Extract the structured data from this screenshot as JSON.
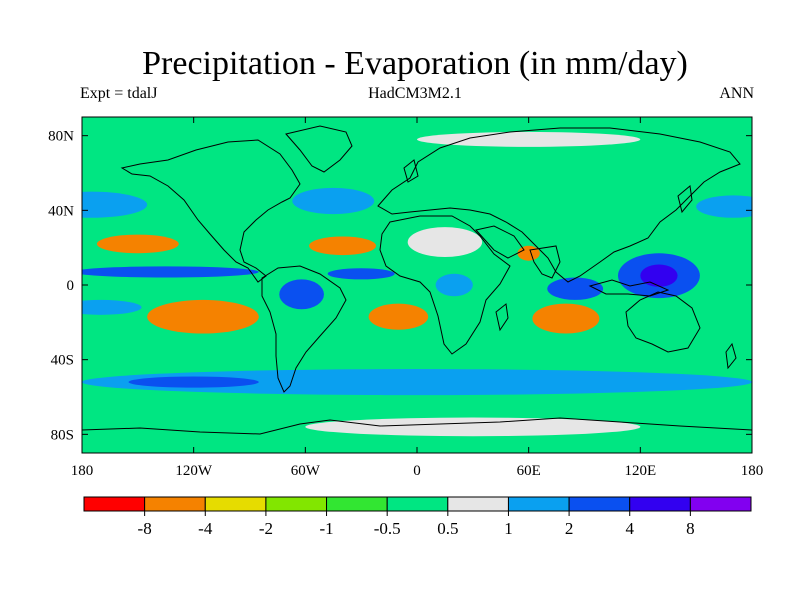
{
  "header": {
    "title": "Precipitation - Evaporation (in mm/day)",
    "left": "Expt = tdalJ",
    "center": "HadCM3M2.1",
    "right": "ANN"
  },
  "colors": {
    "lt_-8": "#ff0000",
    "-8_-4": "#f58200",
    "-4_-2": "#e6dc00",
    "-2_-1": "#82e600",
    "-1_-0.5": "#32e632",
    "-0.5_0.5": "#00e682",
    "0.5_1": "#e6e6e6",
    "1_2": "#0aa0f0",
    "2_4": "#0a50f0",
    "4_8": "#3200f0",
    "gt_8": "#8200f0"
  },
  "chart_data": {
    "type": "heatmap",
    "title": "Precipitation - Evaporation (in mm/day)",
    "variable": "Precipitation - Evaporation",
    "units": "mm/day",
    "experiment": "tdalJ",
    "model": "HadCM3M2.1",
    "season": "ANN",
    "x_range": [
      -180,
      180
    ],
    "y_range": [
      -90,
      90
    ],
    "x_ticks": [
      {
        "value": -180,
        "label": "180"
      },
      {
        "value": -120,
        "label": "120W"
      },
      {
        "value": -60,
        "label": "60W"
      },
      {
        "value": 0,
        "label": "0"
      },
      {
        "value": 60,
        "label": "60E"
      },
      {
        "value": 120,
        "label": "120E"
      },
      {
        "value": 180,
        "label": "180"
      }
    ],
    "y_ticks": [
      {
        "value": 80,
        "label": "80N"
      },
      {
        "value": 40,
        "label": "40N"
      },
      {
        "value": 0,
        "label": "0"
      },
      {
        "value": -40,
        "label": "40S"
      },
      {
        "value": -80,
        "label": "80S"
      }
    ],
    "contour_levels": [
      -8,
      -4,
      -2,
      -1,
      -0.5,
      0.5,
      1,
      2,
      4,
      8
    ],
    "colorbar_labels": [
      "-8",
      "-4",
      "-2",
      "-1",
      "-0.5",
      "0.5",
      "1",
      "2",
      "4",
      "8"
    ],
    "colorbar_colors": [
      "#ff0000",
      "#f58200",
      "#e6dc00",
      "#82e600",
      "#32e632",
      "#00e682",
      "#e6e6e6",
      "#0aa0f0",
      "#0a50f0",
      "#3200f0",
      "#8200f0"
    ],
    "background_color": "#00e682",
    "regions": [
      {
        "name": "south-pacific-evap",
        "color": "#f58200",
        "lon": -115,
        "lat": -17,
        "rlon": 30,
        "rlat": 9
      },
      {
        "name": "north-pacific-evap",
        "color": "#f58200",
        "lon": -150,
        "lat": 22,
        "rlon": 22,
        "rlat": 5
      },
      {
        "name": "north-atlantic-evap",
        "color": "#f58200",
        "lon": -40,
        "lat": 21,
        "rlon": 18,
        "rlat": 5
      },
      {
        "name": "south-atlantic-evap",
        "color": "#f58200",
        "lon": -10,
        "lat": -17,
        "rlon": 16,
        "rlat": 7
      },
      {
        "name": "south-indian-evap",
        "color": "#f58200",
        "lon": 80,
        "lat": -18,
        "rlon": 18,
        "rlat": 8
      },
      {
        "name": "arabian-sea-evap",
        "color": "#f58200",
        "lon": 60,
        "lat": 17,
        "rlon": 6,
        "rlat": 4
      },
      {
        "name": "north-pacific-storm-track",
        "color": "#0aa0f0",
        "lon": -175,
        "lat": 43,
        "rlon": 30,
        "rlat": 7
      },
      {
        "name": "north-pacific-storm-track-east",
        "color": "#0aa0f0",
        "lon": 170,
        "lat": 42,
        "rlon": 20,
        "rlat": 6
      },
      {
        "name": "north-atlantic-storm-track",
        "color": "#0aa0f0",
        "lon": -45,
        "lat": 45,
        "rlon": 22,
        "rlat": 7
      },
      {
        "name": "southern-ocean-track",
        "color": "#0aa0f0",
        "lon": 0,
        "lat": -52,
        "rlon": 180,
        "rlat": 7
      },
      {
        "name": "southern-ocean-pacific",
        "color": "#0a50f0",
        "lon": -120,
        "lat": -52,
        "rlon": 35,
        "rlat": 3
      },
      {
        "name": "itcz-pacific",
        "color": "#0a50f0",
        "lon": -135,
        "lat": 7,
        "rlon": 50,
        "rlat": 3
      },
      {
        "name": "itcz-atlantic",
        "color": "#0a50f0",
        "lon": -30,
        "lat": 6,
        "rlon": 18,
        "rlat": 3
      },
      {
        "name": "indian-ocean-rain",
        "color": "#0a50f0",
        "lon": 85,
        "lat": -2,
        "rlon": 15,
        "rlat": 6
      },
      {
        "name": "warm-pool-rain",
        "color": "#0a50f0",
        "lon": 130,
        "lat": 5,
        "rlon": 22,
        "rlat": 12
      },
      {
        "name": "warm-pool-max",
        "color": "#3200f0",
        "lon": 130,
        "lat": 5,
        "rlon": 10,
        "rlat": 6
      },
      {
        "name": "amazon-rain",
        "color": "#0a50f0",
        "lon": -62,
        "lat": -5,
        "rlon": 12,
        "rlat": 8
      },
      {
        "name": "congo-rain",
        "color": "#0aa0f0",
        "lon": 20,
        "lat": 0,
        "rlon": 10,
        "rlat": 6
      },
      {
        "name": "spcz",
        "color": "#0aa0f0",
        "lon": -170,
        "lat": -12,
        "rlon": 22,
        "rlat": 4
      },
      {
        "name": "sahara-dry",
        "color": "#e6e6e6",
        "lon": 15,
        "lat": 23,
        "rlon": 20,
        "rlat": 8
      },
      {
        "name": "arctic-grey",
        "color": "#e6e6e6",
        "lon": 60,
        "lat": 78,
        "rlon": 60,
        "rlat": 4
      },
      {
        "name": "antarctica-grey",
        "color": "#e6e6e6",
        "lon": 30,
        "lat": -76,
        "rlon": 90,
        "rlat": 5
      }
    ]
  }
}
